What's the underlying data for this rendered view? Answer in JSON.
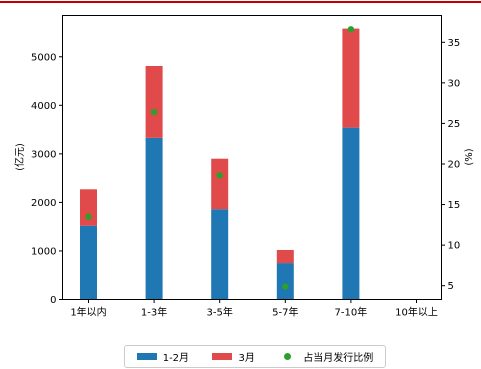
{
  "chart_data": {
    "type": "bar",
    "categories": [
      "1年以内",
      "1-3年",
      "3-5年",
      "5-7年",
      "7-10年",
      "10年以上"
    ],
    "series": [
      {
        "name": "1-2月",
        "values": [
          1520,
          3330,
          1860,
          750,
          3540,
          0
        ],
        "color": "#1f77b4",
        "axis": "left"
      },
      {
        "name": "3月",
        "values": [
          750,
          1480,
          1040,
          270,
          2040,
          0
        ],
        "color": "#e04a4a",
        "axis": "left",
        "stacked": true
      },
      {
        "name": "占当月发行比例",
        "type": "scatter",
        "values": [
          13.5,
          26.4,
          18.6,
          4.9,
          36.6,
          null
        ],
        "color": "#2ca02c",
        "axis": "right"
      }
    ],
    "ylabel": "(亿元)",
    "ylabel_right": "(%)",
    "ylim": [
      0,
      5850
    ],
    "ylim_right": [
      3.3,
      38.3
    ],
    "yticks": [
      "0",
      "1000",
      "2000",
      "3000",
      "4000",
      "5000"
    ],
    "yticks_right": [
      "5",
      "10",
      "15",
      "20",
      "25",
      "30",
      "35"
    ],
    "legend_position": "bottom-center",
    "grid": false
  }
}
